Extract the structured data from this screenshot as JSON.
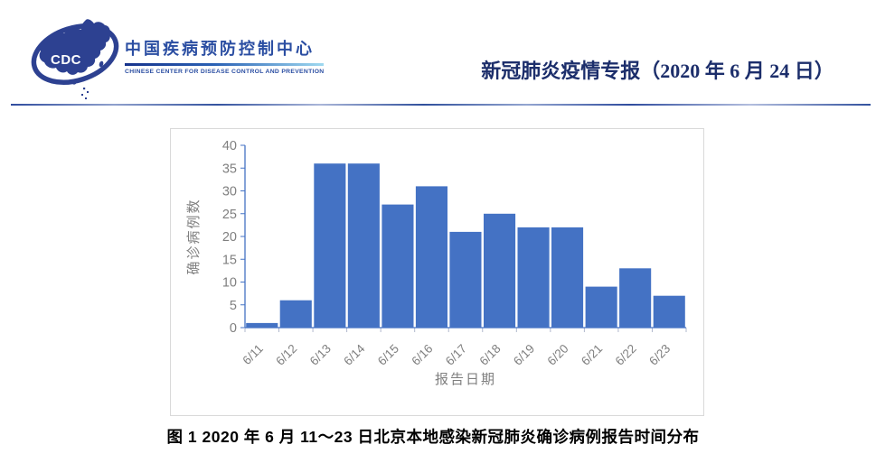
{
  "header": {
    "logo": {
      "cdc_monogram": "CDC",
      "org_name_zh": "中国疾病预防控制中心",
      "org_name_en": "CHINESE CENTER FOR DISEASE CONTROL AND PREVENTION"
    },
    "report_title": "新冠肺炎疫情专报（2020 年 6 月 24 日）"
  },
  "figure": {
    "caption": "图 1  2020 年 6 月 11～23 日北京本地感染新冠肺炎确诊病例报告时间分布"
  },
  "chart_data": {
    "type": "bar",
    "categories": [
      "6/11",
      "6/12",
      "6/13",
      "6/14",
      "6/15",
      "6/16",
      "6/17",
      "6/18",
      "6/19",
      "6/20",
      "6/21",
      "6/22",
      "6/23"
    ],
    "values": [
      1,
      6,
      36,
      36,
      27,
      31,
      21,
      25,
      22,
      22,
      9,
      13,
      7
    ],
    "title": "",
    "xlabel": "报告日期",
    "ylabel": "确诊病例数",
    "ylim": [
      0,
      40
    ],
    "ytick_step": 5,
    "grid": false,
    "legend": "none",
    "bar_color": "#4472C4"
  },
  "colors": {
    "bar": "#4472C4",
    "axis": "#4472C4",
    "tick_label": "#7f7f7f",
    "chart_border": "#d9d9d9",
    "header_navy": "#1c2e6b",
    "brand_blue": "#2b4ea2",
    "logo_blue": "#2d4191",
    "caption_text": "#000000",
    "gradient_start": "#17338c",
    "gradient_end": "#9fd9f0"
  }
}
